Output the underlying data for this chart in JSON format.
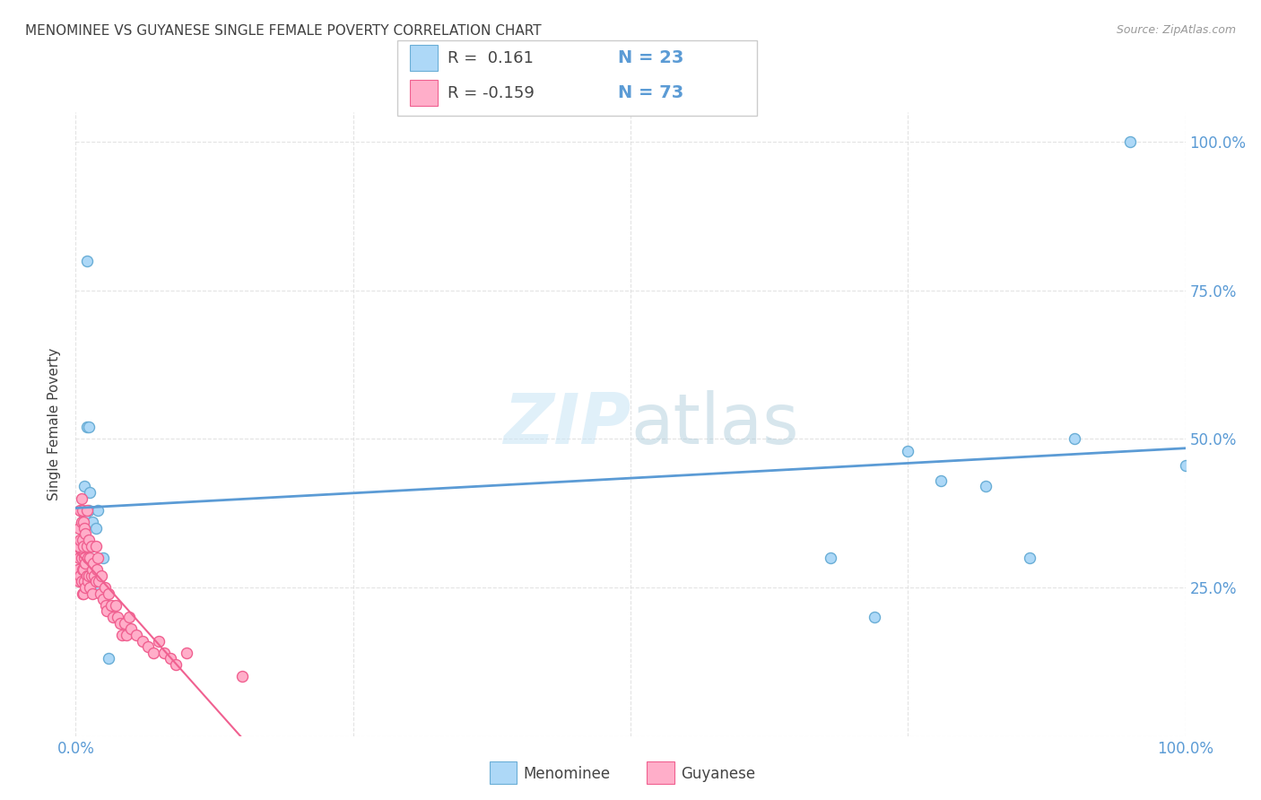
{
  "title": "MENOMINEE VS GUYANESE SINGLE FEMALE POVERTY CORRELATION CHART",
  "source": "Source: ZipAtlas.com",
  "ylabel": "Single Female Poverty",
  "legend_label1": "Menominee",
  "legend_label2": "Guyanese",
  "r1": 0.161,
  "n1": 23,
  "r2": -0.159,
  "n2": 73,
  "menominee_color": "#ADD8F7",
  "guyanese_color": "#FFAEC9",
  "menominee_edge_color": "#6AAED6",
  "guyanese_edge_color": "#F06090",
  "menominee_line_color": "#5B9BD5",
  "guyanese_line_color": "#F06090",
  "axis_tick_color": "#5B9BD5",
  "title_color": "#404040",
  "ylabel_color": "#404040",
  "source_color": "#999999",
  "grid_color": "#DDDDDD",
  "background_color": "#FFFFFF",
  "menominee_x": [
    0.008,
    0.008,
    0.01,
    0.01,
    0.012,
    0.012,
    0.013,
    0.015,
    0.015,
    0.018,
    0.02,
    0.022,
    0.025,
    0.03,
    0.68,
    0.72,
    0.75,
    0.78,
    0.82,
    0.86,
    0.9,
    0.95,
    1.0
  ],
  "menominee_y": [
    0.42,
    0.37,
    0.8,
    0.52,
    0.52,
    0.38,
    0.41,
    0.36,
    0.32,
    0.35,
    0.38,
    0.25,
    0.3,
    0.13,
    0.3,
    0.2,
    0.48,
    0.43,
    0.42,
    0.3,
    0.5,
    1.0,
    0.455
  ],
  "guyanese_x": [
    0.002,
    0.002,
    0.003,
    0.003,
    0.003,
    0.004,
    0.004,
    0.004,
    0.005,
    0.005,
    0.005,
    0.005,
    0.006,
    0.006,
    0.006,
    0.006,
    0.007,
    0.007,
    0.007,
    0.007,
    0.008,
    0.008,
    0.008,
    0.009,
    0.009,
    0.009,
    0.01,
    0.01,
    0.01,
    0.011,
    0.011,
    0.012,
    0.012,
    0.013,
    0.013,
    0.014,
    0.014,
    0.015,
    0.015,
    0.016,
    0.017,
    0.018,
    0.018,
    0.019,
    0.02,
    0.021,
    0.022,
    0.023,
    0.025,
    0.026,
    0.027,
    0.028,
    0.03,
    0.032,
    0.034,
    0.036,
    0.038,
    0.04,
    0.042,
    0.044,
    0.046,
    0.048,
    0.05,
    0.055,
    0.06,
    0.065,
    0.07,
    0.075,
    0.08,
    0.085,
    0.09,
    0.1,
    0.15
  ],
  "guyanese_y": [
    0.32,
    0.28,
    0.35,
    0.3,
    0.26,
    0.38,
    0.33,
    0.27,
    0.4,
    0.36,
    0.3,
    0.26,
    0.38,
    0.33,
    0.28,
    0.24,
    0.36,
    0.32,
    0.28,
    0.24,
    0.35,
    0.3,
    0.26,
    0.34,
    0.29,
    0.25,
    0.38,
    0.32,
    0.27,
    0.3,
    0.26,
    0.33,
    0.27,
    0.3,
    0.25,
    0.32,
    0.27,
    0.28,
    0.24,
    0.29,
    0.27,
    0.32,
    0.26,
    0.28,
    0.3,
    0.26,
    0.24,
    0.27,
    0.23,
    0.25,
    0.22,
    0.21,
    0.24,
    0.22,
    0.2,
    0.22,
    0.2,
    0.19,
    0.17,
    0.19,
    0.17,
    0.2,
    0.18,
    0.17,
    0.16,
    0.15,
    0.14,
    0.16,
    0.14,
    0.13,
    0.12,
    0.14,
    0.1
  ],
  "xlim": [
    0.0,
    1.0
  ],
  "ylim": [
    0.0,
    1.05
  ]
}
